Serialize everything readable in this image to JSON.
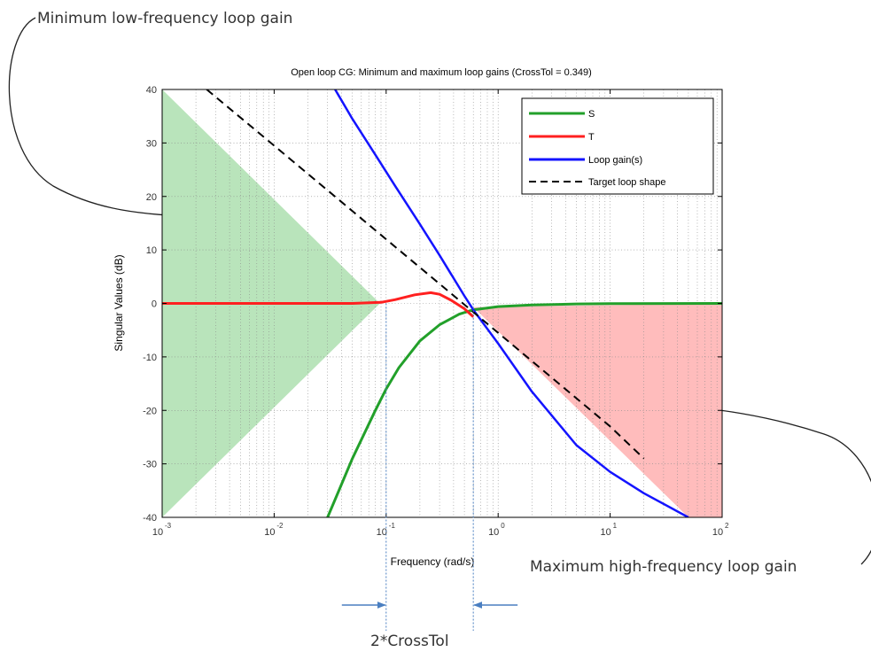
{
  "annotations": {
    "low": "Minimum low-frequency loop gain",
    "high": "Maximum high-frequency loop gain",
    "crosstol": "2*CrossTol"
  },
  "chart_data": {
    "type": "line",
    "title": "Open loop CG: Minimum and maximum loop gains (CrossTol = 0.349)",
    "xlabel": "Frequency (rad/s)",
    "ylabel": "Singular Values (dB)",
    "xscale": "log",
    "xlim": [
      0.001,
      100
    ],
    "ylim": [
      -40,
      40
    ],
    "xticks": [
      {
        "base": "10",
        "exp": "-3",
        "value": 0.001
      },
      {
        "base": "10",
        "exp": "-2",
        "value": 0.01
      },
      {
        "base": "10",
        "exp": "-1",
        "value": 0.1
      },
      {
        "base": "10",
        "exp": "0",
        "value": 1
      },
      {
        "base": "10",
        "exp": "1",
        "value": 10
      },
      {
        "base": "10",
        "exp": "2",
        "value": 100
      }
    ],
    "yticks": [
      "40",
      "30",
      "20",
      "10",
      "0",
      "-10",
      "-20",
      "-30",
      "-40"
    ],
    "grid": true,
    "legend_position": "top-right",
    "colors": {
      "S": "#22a02a",
      "T": "#ff2020",
      "loop": "#1414ff",
      "target": "#000000",
      "low_fill": "#b9e4bb",
      "high_fill": "#ffbcbc",
      "marker": "#4a7fc1"
    },
    "series": [
      {
        "name": "S",
        "x": [
          0.03,
          0.05,
          0.08,
          0.1,
          0.13,
          0.2,
          0.3,
          0.45,
          0.6,
          1,
          2,
          5,
          10,
          100
        ],
        "y": [
          -40,
          -29,
          -20,
          -16,
          -12,
          -7,
          -4,
          -2,
          -1.2,
          -0.6,
          -0.3,
          -0.1,
          -0.05,
          0
        ]
      },
      {
        "name": "T",
        "x": [
          0.001,
          0.01,
          0.05,
          0.09,
          0.12,
          0.18,
          0.25,
          0.3,
          0.38,
          0.5,
          0.6
        ],
        "y": [
          0,
          0,
          0,
          0.2,
          0.7,
          1.6,
          2,
          1.7,
          0.6,
          -1,
          -2.5
        ]
      },
      {
        "name": "Loop gain(s)",
        "x": [
          0.035,
          0.05,
          0.08,
          0.12,
          0.2,
          0.3,
          0.5,
          0.6,
          1,
          2,
          5,
          10,
          20,
          50
        ],
        "y": [
          40,
          34.5,
          27.8,
          22,
          14.8,
          9,
          1.4,
          -1.2,
          -7.5,
          -16.5,
          -26.5,
          -31.5,
          -35.5,
          -40
        ]
      },
      {
        "name": "Target loop shape",
        "x": [
          0.0025,
          0.01,
          0.1,
          1,
          10,
          20
        ],
        "y": [
          40,
          29.5,
          12,
          -5.5,
          -23,
          -29
        ]
      }
    ],
    "regions": [
      {
        "x": [
          0.001,
          0.088,
          0.001
        ],
        "y": [
          40,
          0,
          -40
        ]
      },
      {
        "x": [
          0.6,
          100,
          100,
          50,
          0.6
        ],
        "y": [
          -0.7,
          0,
          -40,
          -40,
          -0.7
        ]
      }
    ],
    "markers_x": [
      0.1,
      0.6
    ]
  }
}
